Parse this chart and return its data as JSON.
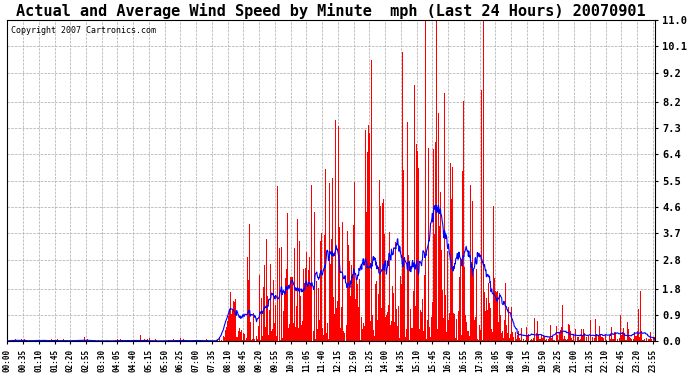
{
  "title": "Actual and Average Wind Speed by Minute  mph (Last 24 Hours) 20070901",
  "copyright": "Copyright 2007 Cartronics.com",
  "yticks": [
    0.0,
    0.9,
    1.8,
    2.8,
    3.7,
    4.6,
    5.5,
    6.4,
    7.3,
    8.2,
    9.2,
    10.1,
    11.0
  ],
  "ylim": [
    0.0,
    11.0
  ],
  "bar_color": "#FF0000",
  "line_color": "#0000FF",
  "bg_color": "#FFFFFF",
  "grid_color": "#AAAAAA",
  "title_fontsize": 11,
  "n_minutes": 1440,
  "tick_step": 35,
  "avg_window": 30
}
